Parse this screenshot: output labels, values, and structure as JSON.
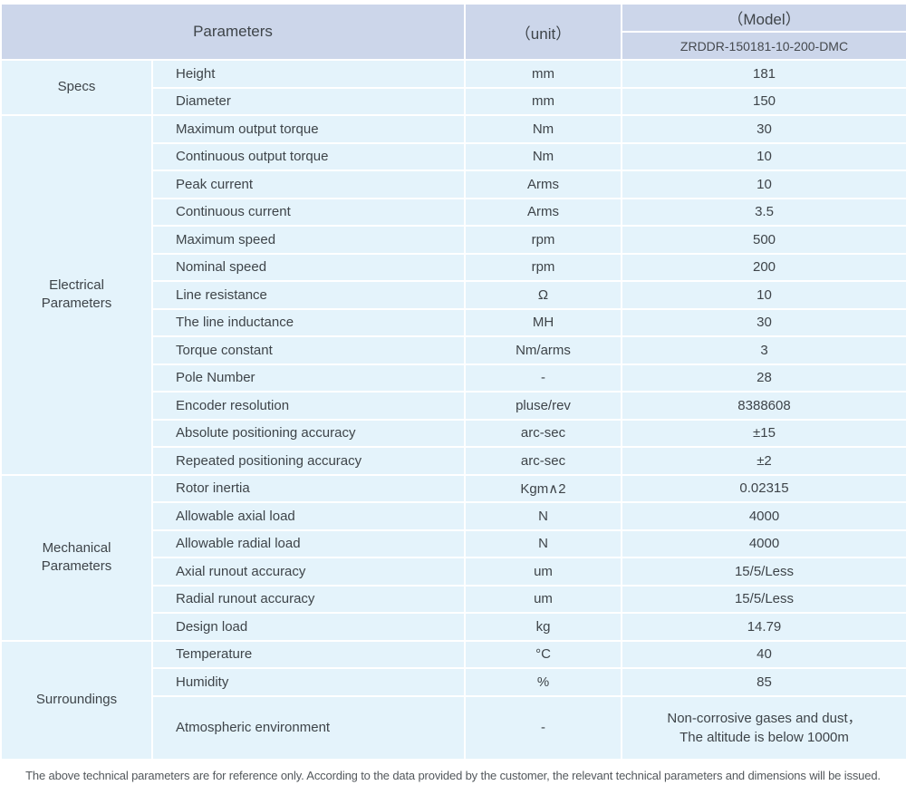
{
  "header": {
    "parameters_label": "Parameters",
    "unit_label": "（unit）",
    "model_label": "（Model）",
    "model_value": "ZRDDR-150181-10-200-DMC"
  },
  "table": {
    "groups": [
      {
        "id": "specs",
        "label": "Specs",
        "rows": [
          {
            "param": "Height",
            "unit": "mm",
            "value": "181"
          },
          {
            "param": "Diameter",
            "unit": "mm",
            "value": "150"
          }
        ]
      },
      {
        "id": "electrical-parameters",
        "label": "Electrical Parameters",
        "rows": [
          {
            "param": "Maximum output torque",
            "unit": "Nm",
            "value": "30"
          },
          {
            "param": "Continuous output torque",
            "unit": "Nm",
            "value": "10"
          },
          {
            "param": "Peak current",
            "unit": "Arms",
            "value": "10"
          },
          {
            "param": "Continuous current",
            "unit": "Arms",
            "value": "3.5"
          },
          {
            "param": "Maximum speed",
            "unit": "rpm",
            "value": "500"
          },
          {
            "param": "Nominal speed",
            "unit": "rpm",
            "value": "200"
          },
          {
            "param": "Line resistance",
            "unit": "Ω",
            "value": "10"
          },
          {
            "param": "The line inductance",
            "unit": "MH",
            "value": "30"
          },
          {
            "param": "Torque constant",
            "unit": "Nm/arms",
            "value": "3"
          },
          {
            "param": "Pole Number",
            "unit": "-",
            "value": "28"
          },
          {
            "param": "Encoder resolution",
            "unit": "pluse/rev",
            "value": "8388608"
          },
          {
            "param": "Absolute positioning accuracy",
            "unit": "arc-sec",
            "value": "±15"
          },
          {
            "param": "Repeated positioning accuracy",
            "unit": "arc-sec",
            "value": "±2"
          }
        ]
      },
      {
        "id": "mechanical-parameters",
        "label": "Mechanical Parameters",
        "rows": [
          {
            "param": "Rotor inertia",
            "unit": "Kgm∧2",
            "value": "0.02315"
          },
          {
            "param": "Allowable axial load",
            "unit": "N",
            "value": "4000"
          },
          {
            "param": "Allowable radial load",
            "unit": "N",
            "value": "4000"
          },
          {
            "param": "Axial runout accuracy",
            "unit": "um",
            "value": "15/5/Less"
          },
          {
            "param": "Radial runout accuracy",
            "unit": "um",
            "value": "15/5/Less"
          },
          {
            "param": "Design load",
            "unit": "kg",
            "value": "14.79"
          }
        ]
      },
      {
        "id": "surroundings",
        "label": "Surroundings",
        "rows": [
          {
            "param": "Temperature",
            "unit": "°C",
            "value": "40"
          },
          {
            "param": "Humidity",
            "unit": "%",
            "value": "85"
          },
          {
            "param": "Atmospheric environment",
            "unit": "-",
            "value": "Non-corrosive gases and dust，\nThe altitude is below 1000m"
          }
        ]
      }
    ]
  },
  "footer": {
    "note": "The above technical parameters are for reference only. According to the data provided by the customer, the relevant technical parameters and dimensions will be issued."
  },
  "colors": {
    "header_bg": "#ccd6ea",
    "cell_bg": "#e4f3fb",
    "separator": "#ffffff",
    "text": "#3e4449",
    "footer_text": "#53585c"
  }
}
